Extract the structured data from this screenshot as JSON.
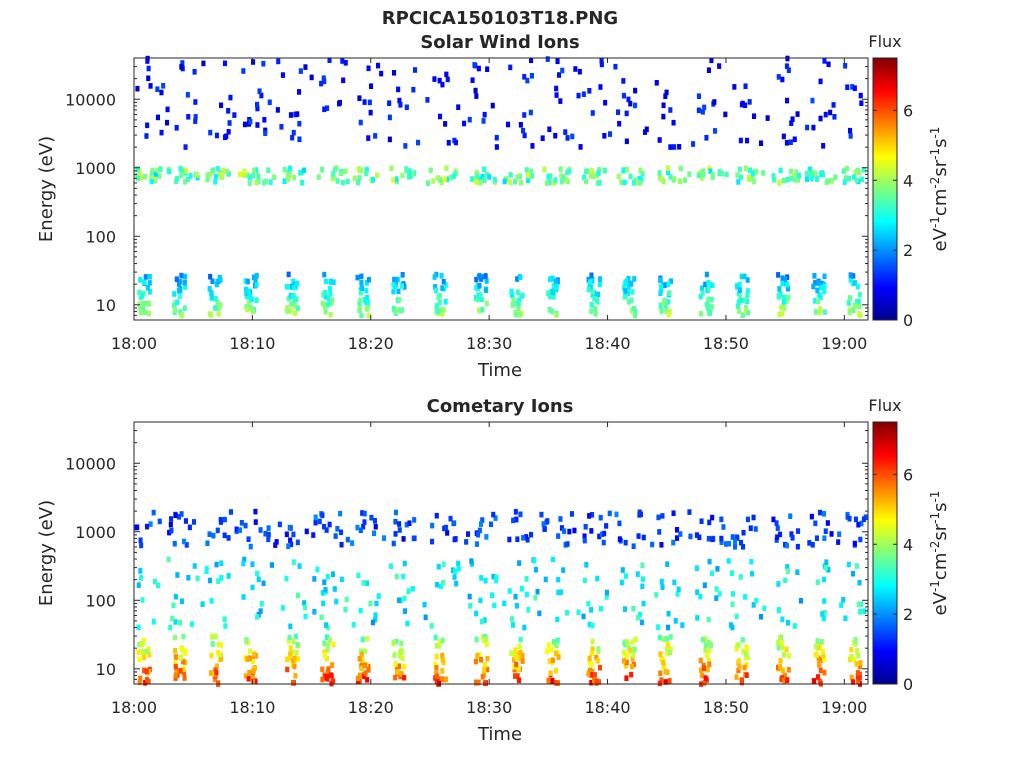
{
  "figure_title": "RPCICA150103T18.PNG",
  "colors": {
    "background": "#ffffff",
    "axis": "#262626",
    "colormap": "jet"
  },
  "chart_data": [
    {
      "type": "heatmap",
      "title": "Solar Wind Ions",
      "xlabel": "Time",
      "ylabel": "Energy (eV)",
      "yscale": "log",
      "xlim": [
        "18:00",
        "19:02"
      ],
      "ylim": [
        6,
        40000
      ],
      "x_ticks": [
        "18:00",
        "18:10",
        "18:20",
        "18:30",
        "18:40",
        "18:50",
        "19:00"
      ],
      "y_ticks": [
        "10",
        "100",
        "1000",
        "10000"
      ],
      "colorbar": {
        "label": "eV-1cm-2sr-1s-1",
        "title": "Flux",
        "range": [
          0,
          7.5
        ],
        "ticks": [
          "0",
          "2",
          "4",
          "6"
        ]
      },
      "features": [
        {
          "band": "solar wind peak",
          "energy_range_eV": [
            600,
            1000
          ],
          "flux_range": [
            2.5,
            4.5
          ]
        },
        {
          "band": "low-energy bursts",
          "energy_range_eV": [
            7,
            28
          ],
          "flux_range": [
            1.5,
            4.5
          ]
        },
        {
          "band": "scattered high-energy counts",
          "energy_range_eV": [
            2000,
            40000
          ],
          "flux_range": [
            0.5,
            1.5
          ]
        }
      ],
      "pulse_times_min": [
        0.5,
        3.5,
        6.5,
        9.5,
        13,
        16,
        19,
        22,
        25.5,
        29,
        32,
        35,
        38.5,
        41.5,
        44.5,
        48,
        51,
        54.5,
        57.5,
        60.5
      ]
    },
    {
      "type": "heatmap",
      "title": "Cometary Ions",
      "xlabel": "Time",
      "ylabel": "Energy (eV)",
      "yscale": "log",
      "xlim": [
        "18:00",
        "19:02"
      ],
      "ylim": [
        6,
        40000
      ],
      "x_ticks": [
        "18:00",
        "18:10",
        "18:20",
        "18:30",
        "18:40",
        "18:50",
        "19:00"
      ],
      "y_ticks": [
        "10",
        "100",
        "1000",
        "10000"
      ],
      "colorbar": {
        "label": "eV-1cm-2sr-1s-1",
        "title": "Flux",
        "range": [
          0,
          7.5
        ],
        "ticks": [
          "0",
          "2",
          "4",
          "6"
        ]
      },
      "features": [
        {
          "band": "cold cometary ions",
          "energy_range_eV": [
            6,
            30
          ],
          "flux_range": [
            3,
            7
          ]
        },
        {
          "band": "accelerated ions",
          "energy_range_eV": [
            40,
            400
          ],
          "flux_range": [
            2,
            3.5
          ]
        },
        {
          "band": "sparse 1 keV counts",
          "energy_range_eV": [
            600,
            2000
          ],
          "flux_range": [
            0.8,
            2
          ]
        }
      ],
      "pulse_times_min": [
        0.5,
        3.5,
        6.5,
        9.5,
        13,
        16,
        19,
        22,
        25.5,
        29,
        32,
        35,
        38.5,
        41.5,
        44.5,
        48,
        51,
        54.5,
        57.5,
        60.5
      ]
    }
  ]
}
